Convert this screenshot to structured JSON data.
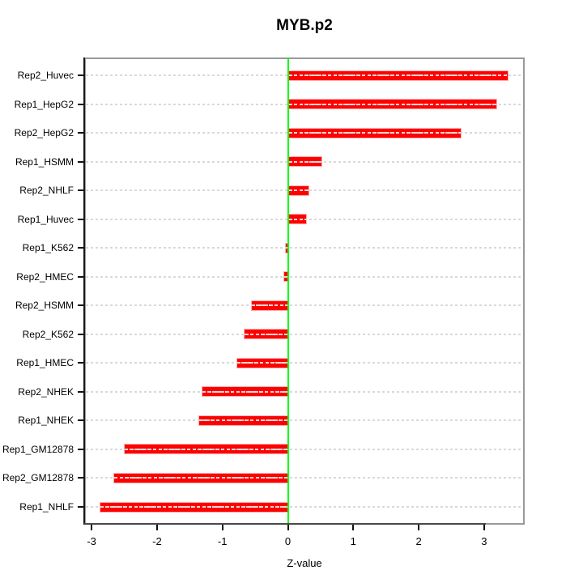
{
  "title": "MYB.p2",
  "chart_data": {
    "type": "bar",
    "orientation": "horizontal",
    "title": "MYB.p2",
    "xlabel": "Z-value",
    "categories": [
      "Rep2_Huvec",
      "Rep1_HepG2",
      "Rep2_HepG2",
      "Rep1_HSMM",
      "Rep2_NHLF",
      "Rep1_Huvec",
      "Rep1_K562",
      "Rep2_HMEC",
      "Rep2_HSMM",
      "Rep2_K562",
      "Rep1_HMEC",
      "Rep2_NHEK",
      "Rep1_NHEK",
      "Rep1_GM12878",
      "Rep2_GM12878",
      "Rep1_NHLF"
    ],
    "values": [
      3.36,
      3.19,
      2.64,
      0.51,
      0.31,
      0.28,
      -0.03,
      -0.06,
      -0.55,
      -0.66,
      -0.77,
      -1.3,
      -1.35,
      -2.5,
      -2.65,
      -2.87
    ],
    "xticks": [
      -3,
      -2,
      -1,
      0,
      1,
      2,
      3
    ],
    "xlim": [
      -3.11,
      3.62
    ],
    "grid": "horizontal-dotted",
    "legend": null,
    "colors": {
      "bar": "#ff0000",
      "zero_line": "#00ff00",
      "gridline": "#d9d9d9",
      "plot_border": "#999999",
      "text": "#000000"
    }
  }
}
